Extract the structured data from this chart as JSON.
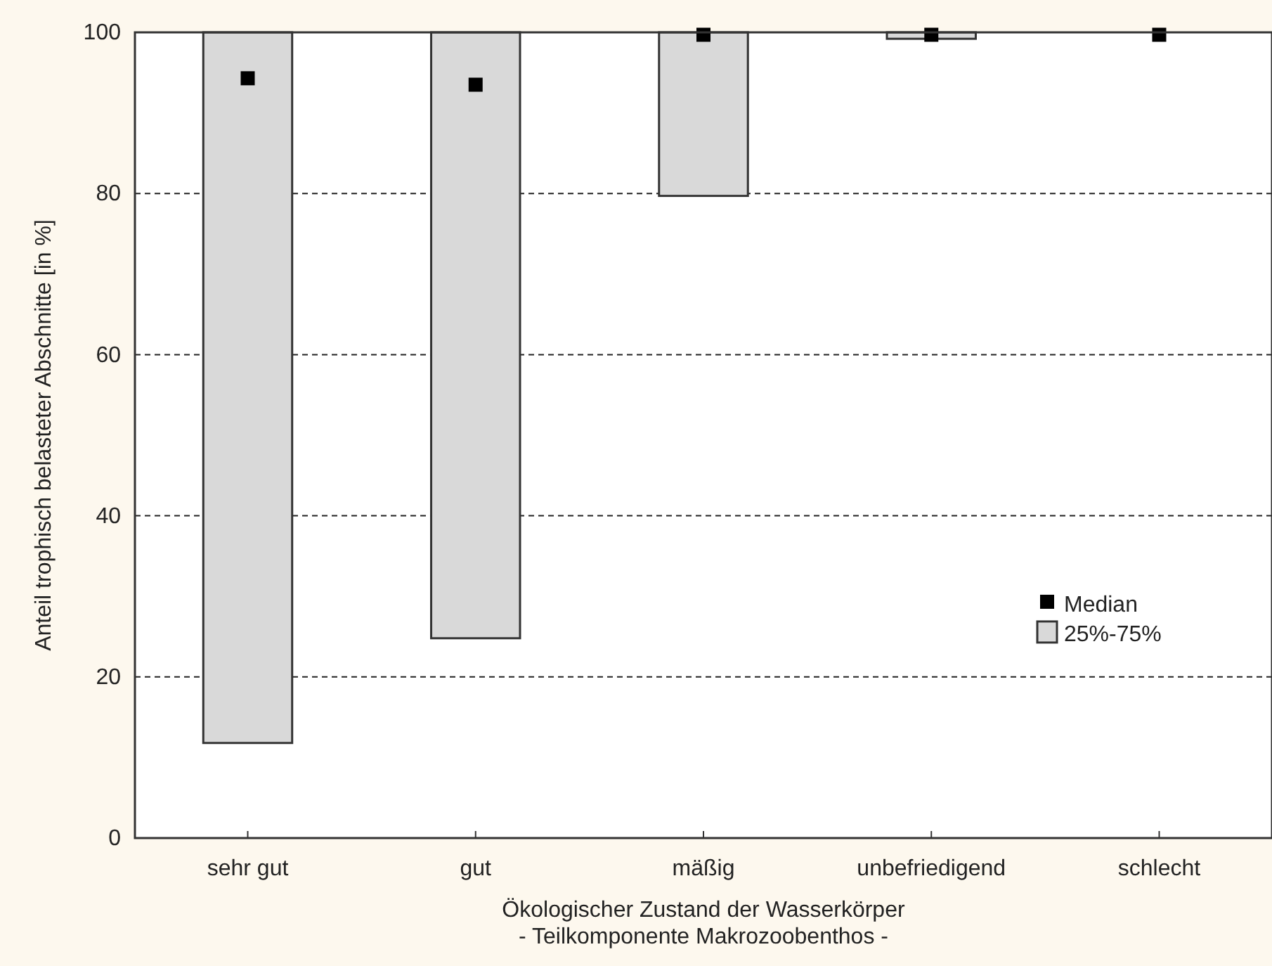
{
  "chart_data": {
    "type": "bar",
    "xlabel": "Ökologischer Zustand der Wasserkörper\n- Teilkomponente Makrozoobenthos -",
    "ylabel": "Anteil trophisch belasteter Abschnitte [in %]",
    "categories": [
      "sehr gut",
      "gut",
      "mäßig",
      "unbefriedigend",
      "schlecht"
    ],
    "series": [
      {
        "name": "25%-75%",
        "color": "#d9d9d9",
        "base": [
          11.8,
          24.8,
          79.7,
          99.2,
          null
        ],
        "values": [
          88.2,
          75.2,
          20.3,
          0.8,
          null
        ]
      },
      {
        "name": "Median",
        "type": "scatter",
        "color": "#000000",
        "marker": "square",
        "x": [
          "sehr gut",
          "gut",
          "mäßig",
          "unbefriedigend",
          "schlecht"
        ],
        "values": [
          94.3,
          93.5,
          99.7,
          99.7,
          99.7
        ]
      }
    ],
    "ylim": [
      0,
      100
    ],
    "yticks": [
      0,
      20,
      40,
      60,
      80,
      100
    ],
    "grid": "y",
    "legend": "right"
  }
}
